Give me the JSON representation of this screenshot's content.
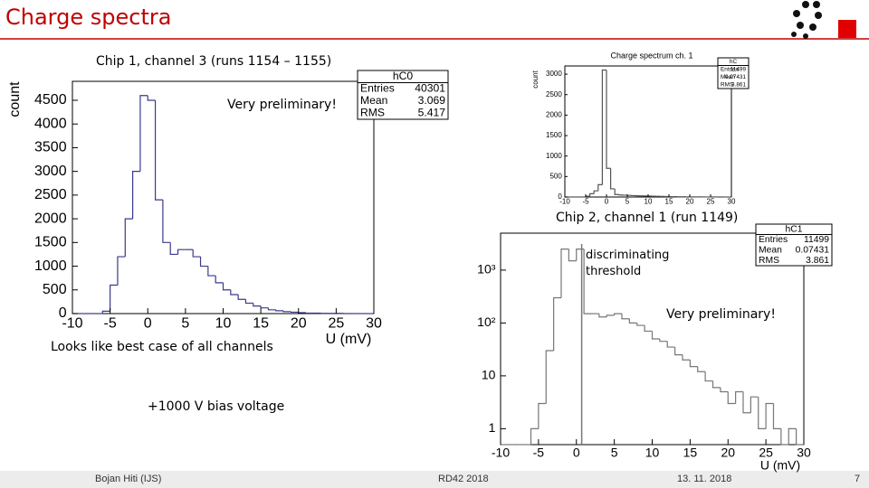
{
  "header": {
    "title": "Charge spectra"
  },
  "captions": [
    "Chip 1, channel 3 (runs 1154 – 1155)",
    "Very preliminary!",
    "Chip 2, channel 1 (run 1149)",
    "Looks like best case of all channels",
    "+1000 V bias voltage",
    "Very preliminary!"
  ],
  "footer": {
    "author": "Bojan Hiti (IJS)",
    "event": "RD42 2018",
    "date": "13. 11. 2018",
    "page": "7"
  },
  "chart_data": [
    {
      "type": "histogram",
      "xlabel": "U (mV)",
      "ylabel": "count",
      "color": "#3a3a8c",
      "bins": [
        -10,
        -9,
        -8,
        -7,
        -6,
        -5,
        -4,
        -3,
        -2,
        -1,
        0,
        1,
        2,
        3,
        4,
        5,
        6,
        7,
        8,
        9,
        10,
        11,
        12,
        13,
        14,
        15,
        16,
        17,
        18,
        19,
        20,
        21,
        22,
        23,
        24,
        25,
        26,
        27,
        28,
        29,
        30
      ],
      "values": [
        0,
        0,
        0,
        0,
        50,
        600,
        1200,
        2000,
        3000,
        4600,
        4500,
        2400,
        1500,
        1250,
        1350,
        1350,
        1200,
        1000,
        800,
        650,
        500,
        400,
        300,
        220,
        160,
        120,
        80,
        60,
        40,
        30,
        20,
        10,
        10,
        5,
        5,
        5,
        0,
        0,
        0,
        0
      ],
      "xlim": [
        -10,
        30
      ],
      "xticks": [
        -10,
        -5,
        0,
        5,
        10,
        15,
        20,
        25,
        30
      ],
      "ylim": [
        0,
        4900
      ],
      "yticks": [
        0,
        500,
        1000,
        1500,
        2000,
        2500,
        3000,
        3500,
        4000,
        4500
      ],
      "stats": {
        "name": "hC0",
        "rows": [
          [
            "Entries",
            "40301"
          ],
          [
            "Mean",
            "3.069"
          ],
          [
            "RMS",
            "5.417"
          ]
        ]
      }
    },
    {
      "type": "histogram",
      "title": "Charge spectrum ch. 1",
      "ylabel": "count",
      "color": "#555555",
      "bins": [
        -10,
        -9,
        -8,
        -7,
        -6,
        -5,
        -4,
        -3,
        -2,
        -1,
        0,
        1,
        2,
        3,
        4,
        5,
        6,
        7,
        8,
        9,
        10,
        11,
        12,
        13,
        14,
        15,
        16,
        17,
        18,
        19,
        20,
        21,
        22,
        23,
        24,
        25,
        26,
        27,
        28,
        29,
        30
      ],
      "values": [
        0,
        0,
        0,
        0,
        0,
        20,
        80,
        150,
        300,
        3100,
        700,
        200,
        60,
        50,
        45,
        40,
        35,
        30,
        28,
        25,
        22,
        20,
        18,
        15,
        12,
        10,
        8,
        6,
        5,
        4,
        3,
        3,
        2,
        2,
        1,
        1,
        1,
        0,
        0,
        0
      ],
      "xlim": [
        -10,
        30
      ],
      "xticks": [
        -10,
        -5,
        0,
        5,
        10,
        15,
        20,
        25,
        30
      ],
      "ylim": [
        0,
        3200
      ],
      "yticks": [
        0,
        500,
        1000,
        1500,
        2000,
        2500,
        3000
      ],
      "stats": {
        "name": "hC",
        "rows": [
          [
            "Entries",
            "11499"
          ],
          [
            "Mean",
            "0.07431"
          ],
          [
            "RMS",
            "3.861"
          ]
        ]
      }
    },
    {
      "type": "histogram",
      "xlabel": "U (mV)",
      "color": "#777777",
      "log_y": true,
      "bins": [
        -10,
        -9,
        -8,
        -7,
        -6,
        -5,
        -4,
        -3,
        -2,
        -1,
        0,
        1,
        2,
        3,
        4,
        5,
        6,
        7,
        8,
        9,
        10,
        11,
        12,
        13,
        14,
        15,
        16,
        17,
        18,
        19,
        20,
        21,
        22,
        23,
        24,
        25,
        26,
        27,
        28,
        29,
        30
      ],
      "values": [
        0,
        0,
        0,
        0,
        1,
        3,
        30,
        300,
        2500,
        1500,
        2500,
        150,
        150,
        130,
        140,
        150,
        120,
        100,
        90,
        70,
        50,
        45,
        35,
        25,
        20,
        15,
        12,
        8,
        6,
        5,
        3,
        5,
        2,
        4,
        1,
        3,
        1,
        0,
        1,
        0
      ],
      "xlim": [
        -10,
        30
      ],
      "xticks": [
        -10,
        -5,
        0,
        5,
        10,
        15,
        20,
        25,
        30
      ],
      "ylim": [
        0.5,
        5000
      ],
      "yticks": [
        1,
        10,
        {
          "value": 100,
          "label": "10²"
        },
        {
          "value": 1000,
          "label": "10³"
        }
      ],
      "threshold": {
        "x": 0.7,
        "label": "discriminating threshold"
      },
      "stats": {
        "name": "hC1",
        "rows": [
          [
            "Entries",
            "11499"
          ],
          [
            "Mean",
            "0.07431"
          ],
          [
            "RMS",
            "3.861"
          ]
        ]
      }
    }
  ]
}
